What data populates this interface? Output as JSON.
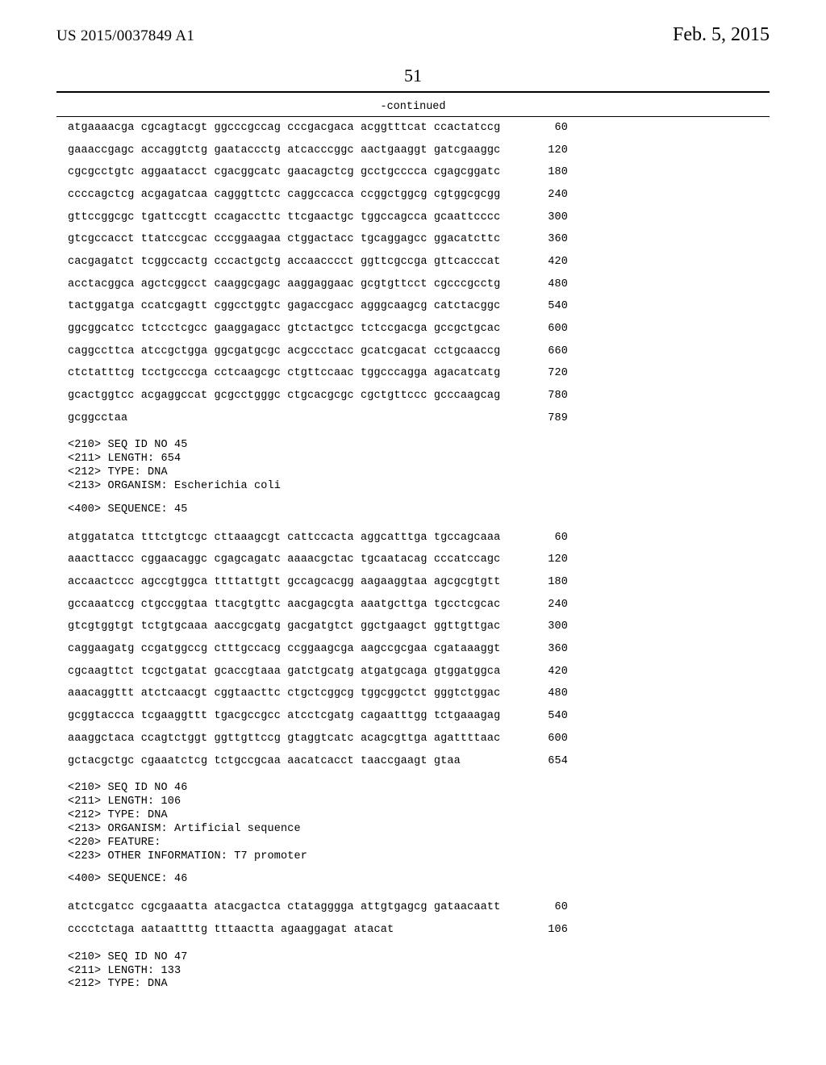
{
  "header": {
    "patent_no": "US 2015/0037849 A1",
    "date": "Feb. 5, 2015",
    "page_no": "51",
    "continued": "-continued"
  },
  "sequences_a": [
    {
      "text": "atgaaaacga cgcagtacgt ggcccgccag cccgacgaca acggtttcat ccactatccg",
      "num": "60"
    },
    {
      "text": "gaaaccgagc accaggtctg gaataccctg atcacccggc aactgaaggt gatcgaaggc",
      "num": "120"
    },
    {
      "text": "cgcgcctgtc aggaatacct cgacggcatc gaacagctcg gcctgcccca cgagcggatc",
      "num": "180"
    },
    {
      "text": "ccccagctcg acgagatcaa cagggttctc caggccacca ccggctggcg cgtggcgcgg",
      "num": "240"
    },
    {
      "text": "gttccggcgc tgattccgtt ccagaccttc ttcgaactgc tggccagcca gcaattcccc",
      "num": "300"
    },
    {
      "text": "gtcgccacct ttatccgcac cccggaagaa ctggactacc tgcaggagcc ggacatcttc",
      "num": "360"
    },
    {
      "text": "cacgagatct tcggccactg cccactgctg accaacccct ggttcgccga gttcacccat",
      "num": "420"
    },
    {
      "text": "acctacggca agctcggcct caaggcgagc aaggaggaac gcgtgttcct cgcccgcctg",
      "num": "480"
    },
    {
      "text": "tactggatga ccatcgagtt cggcctggtc gagaccgacc agggcaagcg catctacggc",
      "num": "540"
    },
    {
      "text": "ggcggcatcc tctcctcgcc gaaggagacc gtctactgcc tctccgacga gccgctgcac",
      "num": "600"
    },
    {
      "text": "caggccttca atccgctgga ggcgatgcgc acgccctacc gcatcgacat cctgcaaccg",
      "num": "660"
    },
    {
      "text": "ctctatttcg tcctgcccga cctcaagcgc ctgttccaac tggcccagga agacatcatg",
      "num": "720"
    },
    {
      "text": "gcactggtcc acgaggccat gcgcctgggc ctgcacgcgc cgctgttccc gcccaagcag",
      "num": "780"
    },
    {
      "text": "gcggcctaa",
      "num": "789"
    }
  ],
  "meta45": [
    "<210> SEQ ID NO 45",
    "<211> LENGTH: 654",
    "<212> TYPE: DNA",
    "<213> ORGANISM: Escherichia coli"
  ],
  "seqlabel45": "<400> SEQUENCE: 45",
  "sequences_b": [
    {
      "text": "atggatatca tttctgtcgc cttaaagcgt cattccacta aggcatttga tgccagcaaa",
      "num": "60"
    },
    {
      "text": "aaacttaccc cggaacaggc cgagcagatc aaaacgctac tgcaatacag cccatccagc",
      "num": "120"
    },
    {
      "text": "accaactccc agccgtggca ttttattgtt gccagcacgg aagaaggtaa agcgcgtgtt",
      "num": "180"
    },
    {
      "text": "gccaaatccg ctgccggtaa ttacgtgttc aacgagcgta aaatgcttga tgcctcgcac",
      "num": "240"
    },
    {
      "text": "gtcgtggtgt tctgtgcaaa aaccgcgatg gacgatgtct ggctgaagct ggttgttgac",
      "num": "300"
    },
    {
      "text": "caggaagatg ccgatggccg ctttgccacg ccggaagcga aagccgcgaa cgataaaggt",
      "num": "360"
    },
    {
      "text": "cgcaagttct tcgctgatat gcaccgtaaa gatctgcatg atgatgcaga gtggatggca",
      "num": "420"
    },
    {
      "text": "aaacaggttt atctcaacgt cggtaacttc ctgctcggcg tggcggctct gggtctggac",
      "num": "480"
    },
    {
      "text": "gcggtaccca tcgaaggttt tgacgccgcc atcctcgatg cagaatttgg tctgaaagag",
      "num": "540"
    },
    {
      "text": "aaaggctaca ccagtctggt ggttgttccg gtaggtcatc acagcgttga agattttaac",
      "num": "600"
    },
    {
      "text": "gctacgctgc cgaaatctcg tctgccgcaa aacatcacct taaccgaagt gtaa",
      "num": "654"
    }
  ],
  "meta46": [
    "<210> SEQ ID NO 46",
    "<211> LENGTH: 106",
    "<212> TYPE: DNA",
    "<213> ORGANISM: Artificial sequence",
    "<220> FEATURE:",
    "<223> OTHER INFORMATION: T7 promoter"
  ],
  "seqlabel46": "<400> SEQUENCE: 46",
  "sequences_c": [
    {
      "text": "atctcgatcc cgcgaaatta atacgactca ctatagggga attgtgagcg gataacaatt",
      "num": "60"
    },
    {
      "text": "cccctctaga aataattttg tttaactta agaaggagat atacat",
      "num": "106"
    }
  ],
  "meta47": [
    "<210> SEQ ID NO 47",
    "<211> LENGTH: 133",
    "<212> TYPE: DNA"
  ]
}
